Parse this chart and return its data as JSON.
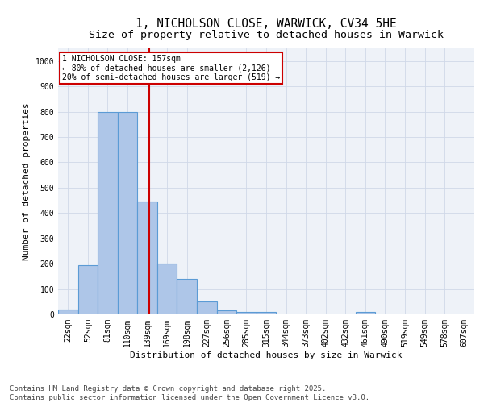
{
  "title_line1": "1, NICHOLSON CLOSE, WARWICK, CV34 5HE",
  "title_line2": "Size of property relative to detached houses in Warwick",
  "xlabel": "Distribution of detached houses by size in Warwick",
  "ylabel": "Number of detached properties",
  "categories": [
    "22sqm",
    "52sqm",
    "81sqm",
    "110sqm",
    "139sqm",
    "169sqm",
    "198sqm",
    "227sqm",
    "256sqm",
    "285sqm",
    "315sqm",
    "344sqm",
    "373sqm",
    "402sqm",
    "432sqm",
    "461sqm",
    "490sqm",
    "519sqm",
    "549sqm",
    "578sqm",
    "607sqm"
  ],
  "values": [
    20,
    195,
    800,
    800,
    445,
    200,
    140,
    50,
    15,
    10,
    10,
    0,
    0,
    0,
    0,
    10,
    0,
    0,
    0,
    0,
    0
  ],
  "bar_color": "#aec6e8",
  "bar_edge_color": "#5b9bd5",
  "bar_edge_width": 0.8,
  "marker_line_color": "#cc0000",
  "marker_box_color": "#cc0000",
  "annotation_line1": "1 NICHOLSON CLOSE: 157sqm",
  "annotation_line2": "← 80% of detached houses are smaller (2,126)",
  "annotation_line3": "20% of semi-detached houses are larger (519) →",
  "ylim": [
    0,
    1050
  ],
  "yticks": [
    0,
    100,
    200,
    300,
    400,
    500,
    600,
    700,
    800,
    900,
    1000
  ],
  "grid_color": "#d0d8e8",
  "background_color": "#eef2f8",
  "footer_line1": "Contains HM Land Registry data © Crown copyright and database right 2025.",
  "footer_line2": "Contains public sector information licensed under the Open Government Licence v3.0.",
  "footer_fontsize": 6.5,
  "title_fontsize1": 10.5,
  "title_fontsize2": 9.5,
  "axis_fontsize": 8,
  "tick_fontsize": 7,
  "annot_fontsize": 7
}
